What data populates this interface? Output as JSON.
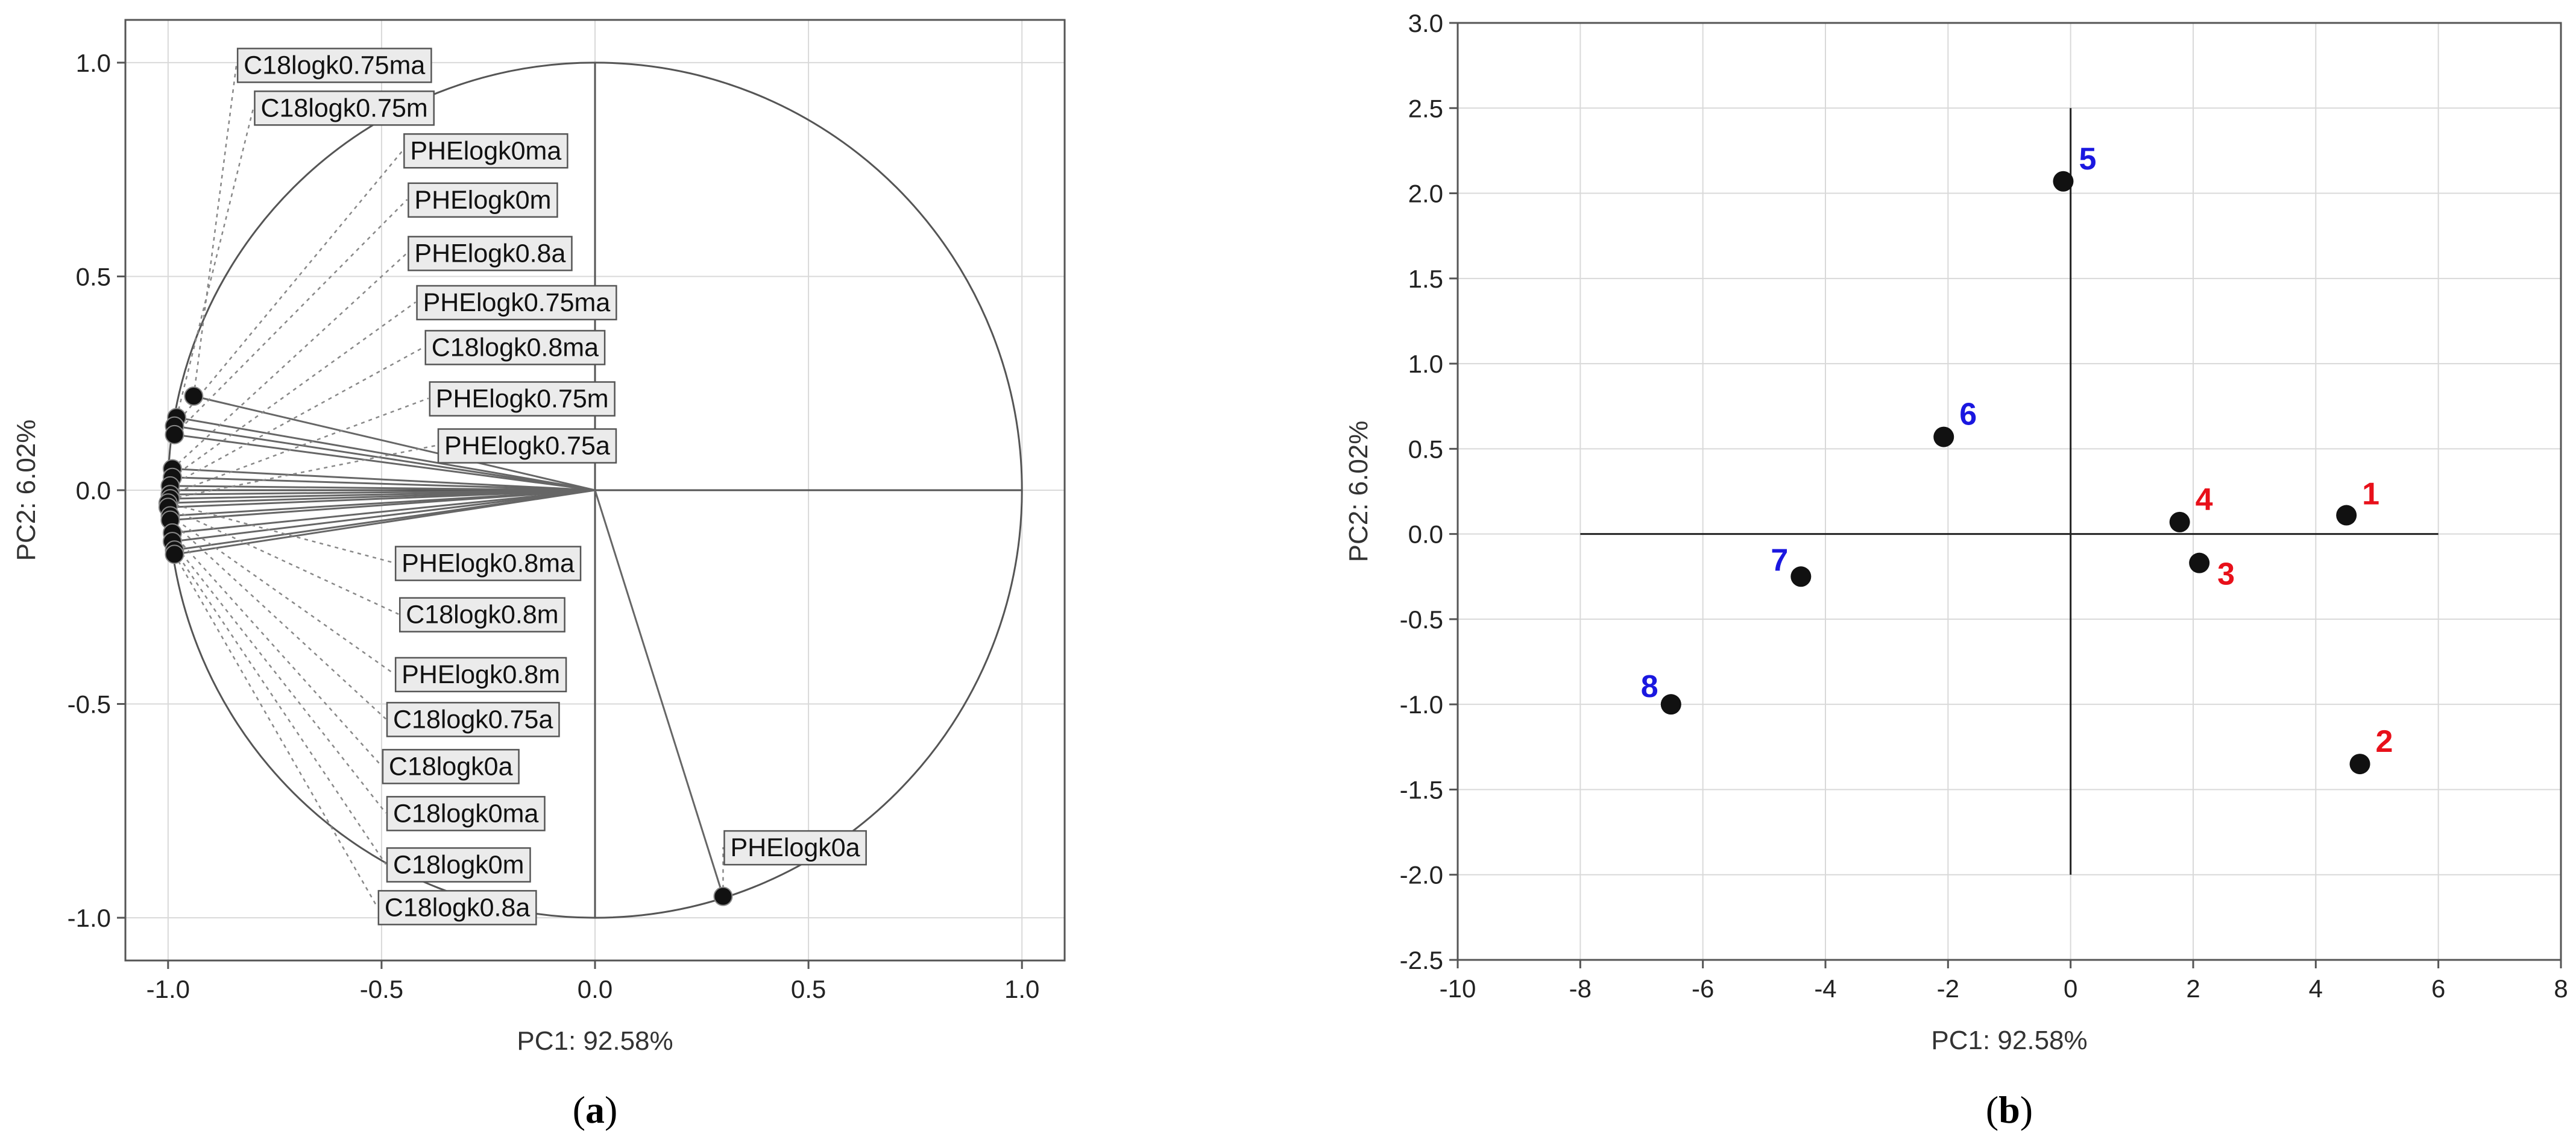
{
  "colors": {
    "red": "#e8101a",
    "blue": "#1a17e0",
    "marker": "#111111"
  },
  "chart_data": [
    {
      "type": "scatter",
      "subtype": "loading-plot",
      "panel_label": {
        "open": "(",
        "letter": "a",
        "close": ")"
      },
      "xlabel": "PC1: 92.58%",
      "ylabel": "PC2:  6.02%",
      "xlim": [
        -1.1,
        1.1
      ],
      "ylim": [
        -1.1,
        1.1
      ],
      "xticks": [
        -1.0,
        -0.5,
        0.0,
        0.5,
        1.0
      ],
      "xtick_labels": [
        "-1.0",
        "-0.5",
        "0.0",
        "0.5",
        "1.0"
      ],
      "yticks": [
        -1.0,
        -0.5,
        0.0,
        0.5,
        1.0
      ],
      "ytick_labels": [
        "-1.0",
        "-0.5",
        "0.0",
        "0.5",
        "1.0"
      ],
      "grid": true,
      "unit_circle": true,
      "variables": [
        {
          "label": "C18logk0.75ma",
          "x": -0.94,
          "y": 0.22,
          "label_x": -0.84,
          "label_y": 0.995
        },
        {
          "label": "C18logk0.75m",
          "x": -0.98,
          "y": 0.17,
          "label_x": -0.8,
          "label_y": 0.895
        },
        {
          "label": "PHElogk0ma",
          "x": -0.985,
          "y": 0.15,
          "label_x": -0.45,
          "label_y": 0.795
        },
        {
          "label": "PHElogk0m",
          "x": -0.985,
          "y": 0.13,
          "label_x": -0.44,
          "label_y": 0.68
        },
        {
          "label": "PHElogk0.8a",
          "x": -0.99,
          "y": 0.05,
          "label_x": -0.44,
          "label_y": 0.555
        },
        {
          "label": "PHElogk0.75ma",
          "x": -0.99,
          "y": 0.03,
          "label_x": -0.42,
          "label_y": 0.44
        },
        {
          "label": "C18logk0.8ma",
          "x": -0.995,
          "y": 0.01,
          "label_x": -0.4,
          "label_y": 0.335
        },
        {
          "label": "PHElogk0.75m",
          "x": -0.995,
          "y": -0.01,
          "label_x": -0.39,
          "label_y": 0.215
        },
        {
          "label": "PHElogk0.75a",
          "x": -0.995,
          "y": -0.02,
          "label_x": -0.37,
          "label_y": 0.105
        },
        {
          "label": "PHElogk0.8ma",
          "x": -1.0,
          "y": -0.03,
          "label_x": -0.47,
          "label_y": -0.17
        },
        {
          "label": "C18logk0.8m",
          "x": -1.0,
          "y": -0.04,
          "label_x": -0.46,
          "label_y": -0.29
        },
        {
          "label": "PHElogk0.8m",
          "x": -0.995,
          "y": -0.06,
          "label_x": -0.47,
          "label_y": -0.43
        },
        {
          "label": "C18logk0.75a",
          "x": -0.995,
          "y": -0.07,
          "label_x": -0.49,
          "label_y": -0.535
        },
        {
          "label": "C18logk0a",
          "x": -0.99,
          "y": -0.1,
          "label_x": -0.5,
          "label_y": -0.645
        },
        {
          "label": "C18logk0ma",
          "x": -0.99,
          "y": -0.12,
          "label_x": -0.49,
          "label_y": -0.755
        },
        {
          "label": "C18logk0m",
          "x": -0.985,
          "y": -0.14,
          "label_x": -0.49,
          "label_y": -0.875
        },
        {
          "label": "C18logk0.8a",
          "x": -0.985,
          "y": -0.15,
          "label_x": -0.51,
          "label_y": -0.975
        },
        {
          "label": "PHElogk0a",
          "x": 0.3,
          "y": -0.95,
          "label_x": 0.3,
          "label_y": -0.835
        }
      ]
    },
    {
      "type": "scatter",
      "subtype": "score-plot",
      "panel_label": {
        "open": "(",
        "letter": "b",
        "close": ")"
      },
      "xlabel": "PC1: 92.58%",
      "ylabel": "PC2:  6.02%",
      "xlim": [
        -10,
        8
      ],
      "ylim": [
        -2.5,
        3.0
      ],
      "xticks": [
        -10,
        -8,
        -6,
        -4,
        -2,
        0,
        2,
        4,
        6,
        8
      ],
      "xtick_labels": [
        "-10",
        "-8",
        "-6",
        "-4",
        "-2",
        "0",
        "2",
        "4",
        "6",
        "8"
      ],
      "yticks": [
        -2.5,
        -2.0,
        -1.5,
        -1.0,
        -0.5,
        0.0,
        0.5,
        1.0,
        1.5,
        2.0,
        2.5,
        3.0
      ],
      "ytick_labels": [
        "-2.5",
        "-2.0",
        "-1.5",
        "-1.0",
        "-0.5",
        "0.0",
        "0.5",
        "1.0",
        "1.5",
        "2.0",
        "2.5",
        "3.0"
      ],
      "grid": true,
      "cross_lines": {
        "h_x": [
          -8,
          6
        ],
        "h_y": 0,
        "v_x": 0,
        "v_y": [
          -2.0,
          2.5
        ]
      },
      "points": [
        {
          "label": "1",
          "x": 4.5,
          "y": 0.11,
          "color": "red"
        },
        {
          "label": "2",
          "x": 4.72,
          "y": -1.35,
          "color": "red"
        },
        {
          "label": "3",
          "x": 2.1,
          "y": -0.17,
          "color": "red"
        },
        {
          "label": "4",
          "x": 1.78,
          "y": 0.07,
          "color": "red"
        },
        {
          "label": "5",
          "x": -0.12,
          "y": 2.07,
          "color": "blue"
        },
        {
          "label": "6",
          "x": -2.07,
          "y": 0.57,
          "color": "blue"
        },
        {
          "label": "7",
          "x": -4.4,
          "y": -0.25,
          "color": "blue"
        },
        {
          "label": "8",
          "x": -6.52,
          "y": -1.0,
          "color": "blue"
        }
      ]
    }
  ]
}
